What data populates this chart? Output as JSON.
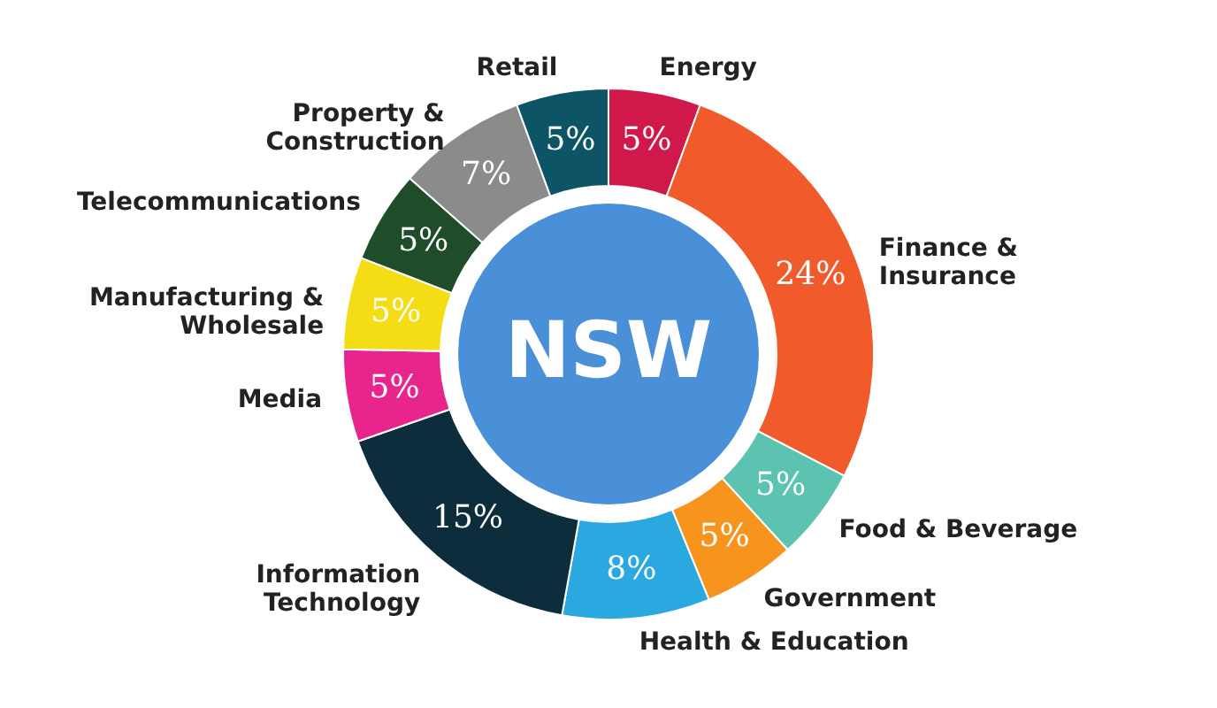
{
  "chart_data": {
    "type": "donut",
    "categories": [
      "Energy",
      "Finance & Insurance",
      "Food & Beverage",
      "Government",
      "Health & Education",
      "Information Technology",
      "Media",
      "Manufacturing & Wholesale",
      "Telecommunications",
      "Property & Construction",
      "Retail"
    ],
    "values": [
      5,
      24,
      5,
      5,
      8,
      15,
      5,
      5,
      5,
      7,
      5
    ],
    "value_labels": [
      "5%",
      "24%",
      "5%",
      "5%",
      "8%",
      "15%",
      "5%",
      "5%",
      "5%",
      "7%",
      "5%"
    ],
    "colors": [
      "#d0184a",
      "#f15a2b",
      "#5cc3b1",
      "#f7941d",
      "#2aa9e0",
      "#0e2d3c",
      "#e8258c",
      "#f5dd16",
      "#1f4d2a",
      "#8b8b8b",
      "#0d5566"
    ],
    "annotations": [
      "NSW"
    ],
    "legend": false
  }
}
